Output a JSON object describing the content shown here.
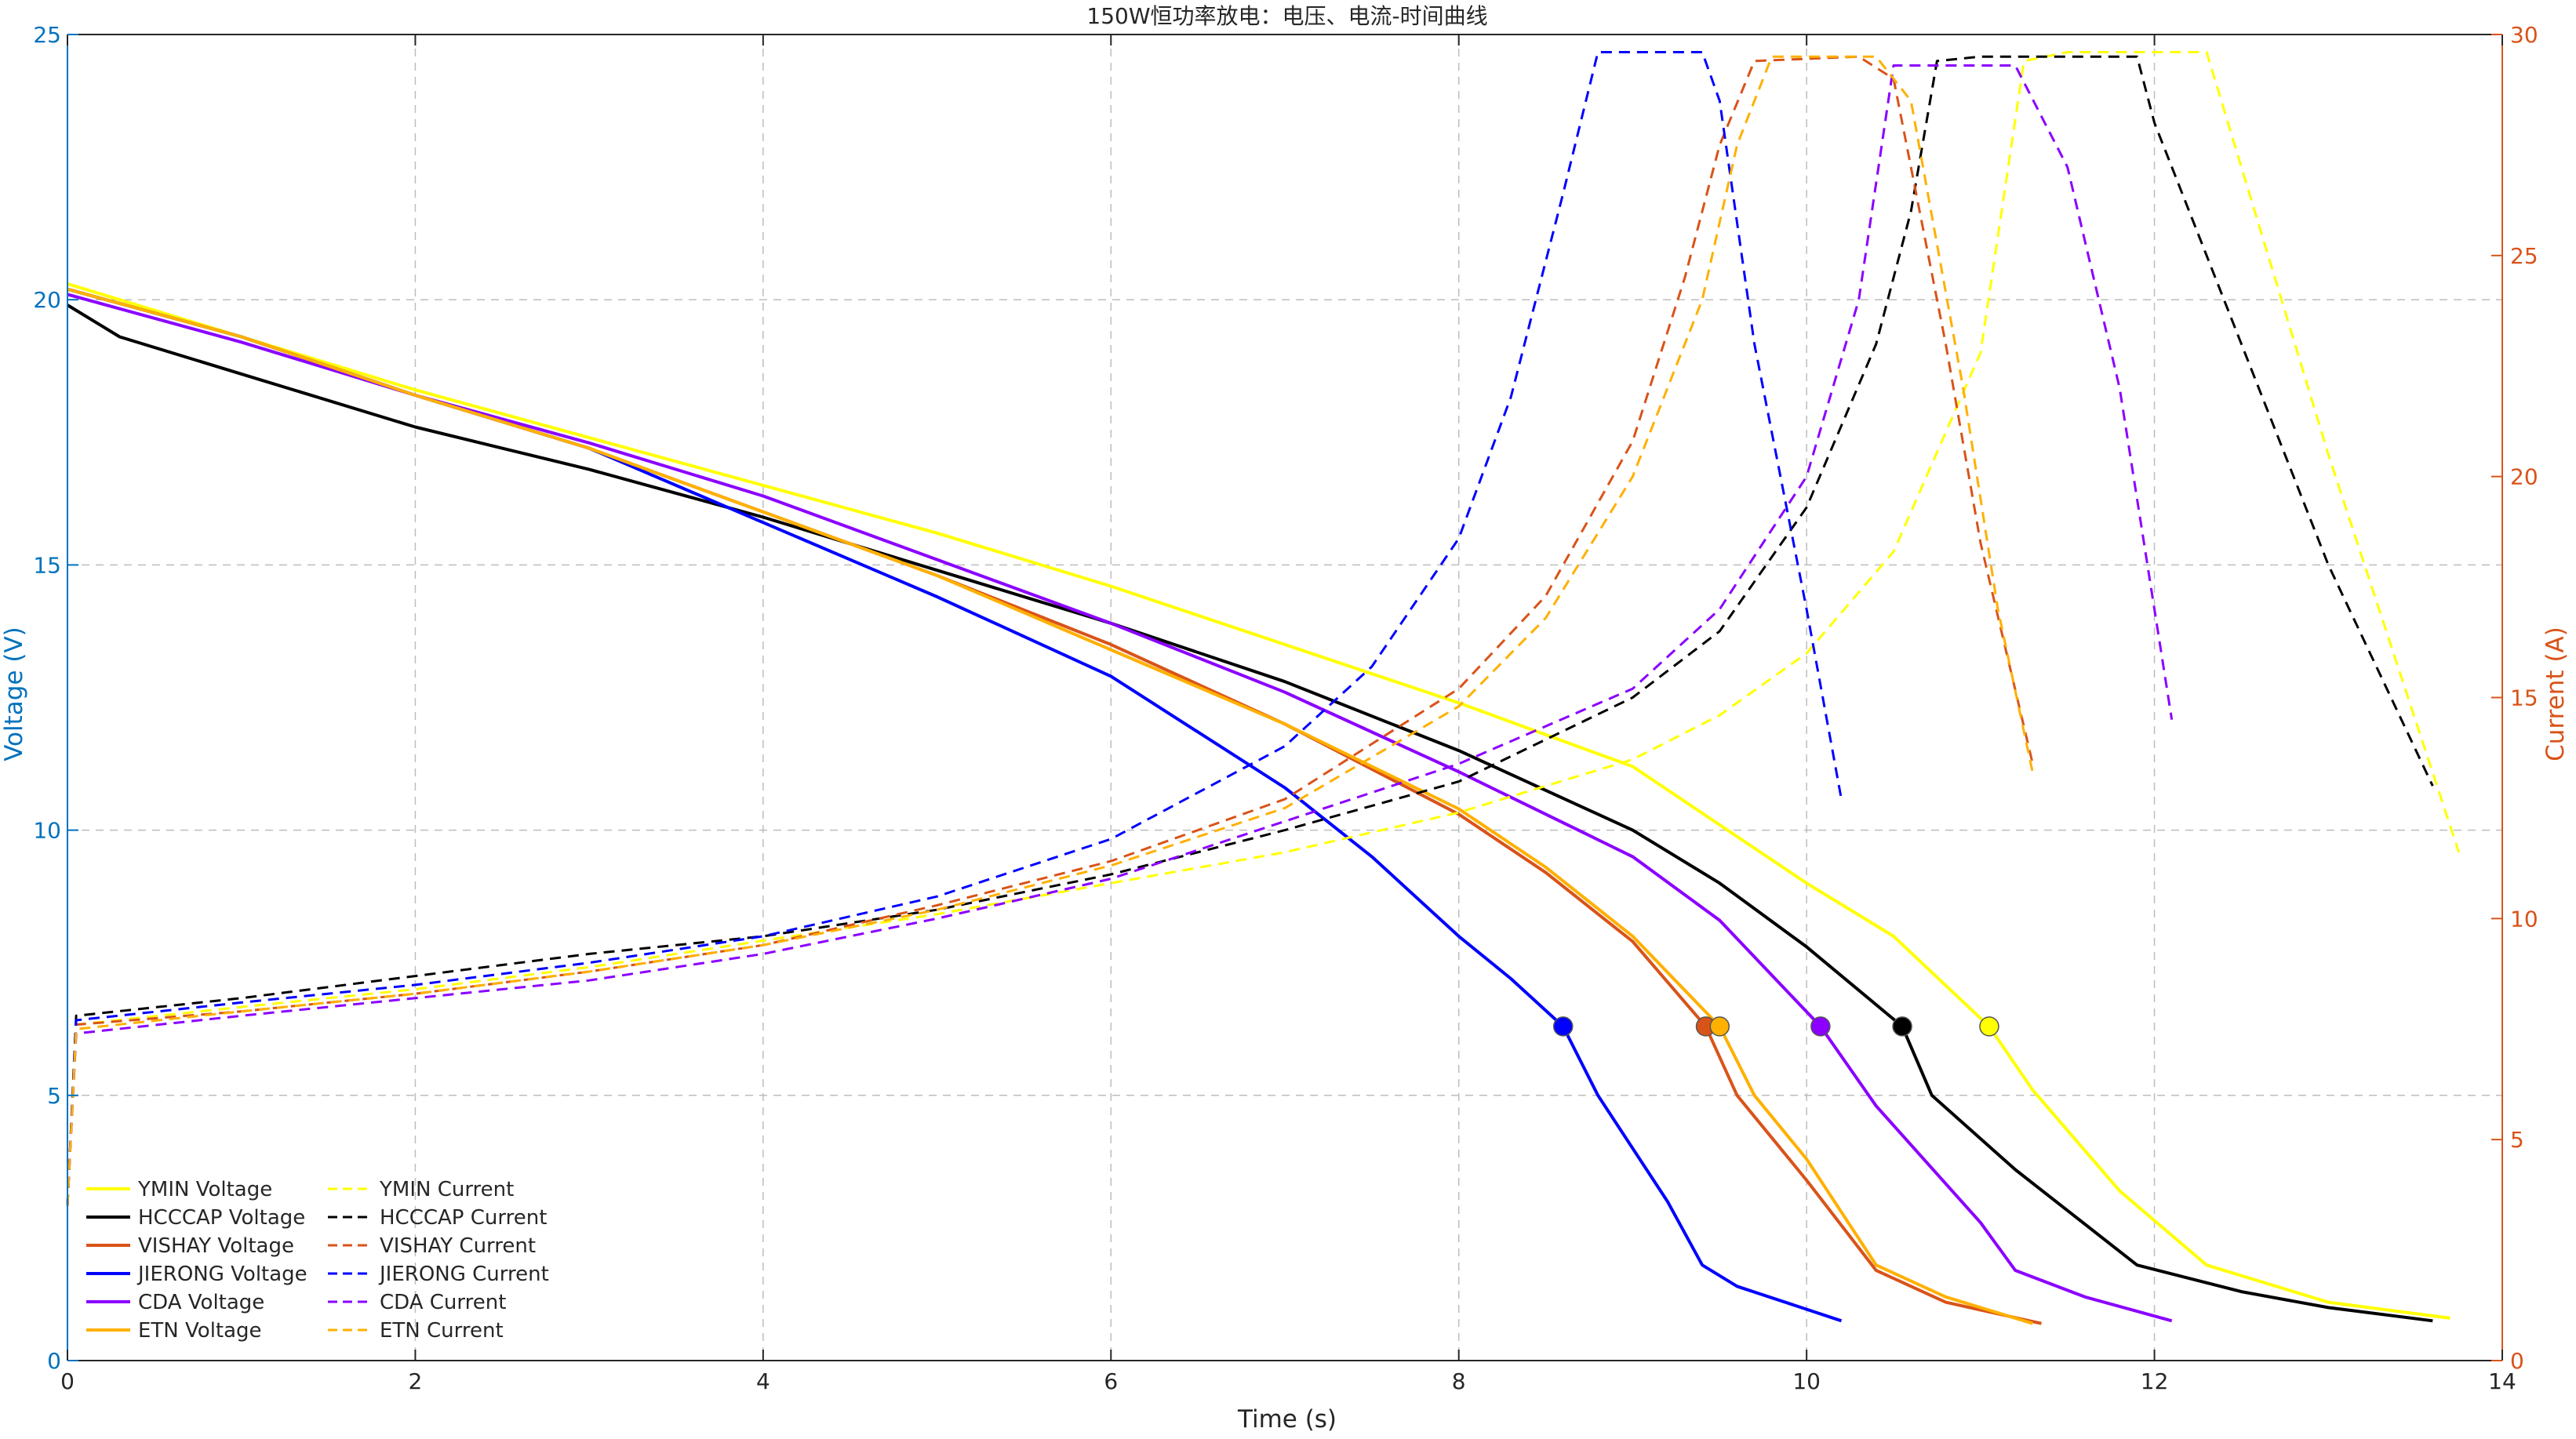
{
  "chart_data": {
    "type": "line",
    "title": "150W恒功率放电：电压、电流-时间曲线",
    "xlabel": "Time (s)",
    "ylabel_left": "Voltage (V)",
    "ylabel_right": "Current (A)",
    "xlim": [
      0,
      14
    ],
    "ylim_left": [
      0,
      25
    ],
    "ylim_right": [
      0,
      30
    ],
    "xticks": [
      "0",
      "2",
      "4",
      "6",
      "8",
      "10",
      "12",
      "14"
    ],
    "yticks_left": [
      "0",
      "5",
      "10",
      "15",
      "20",
      "25"
    ],
    "yticks_right": [
      "0",
      "5",
      "10",
      "15",
      "20",
      "25",
      "30"
    ],
    "grid": true,
    "legend_position": "bottom-left",
    "colors": {
      "left_axis": "#0072BD",
      "right_axis": "#D95319",
      "grid": "#bdbdbd"
    },
    "series": [
      {
        "name": "YMIN Voltage",
        "axis": "left",
        "style": "solid",
        "color": "#FFFF00",
        "x": [
          0,
          1,
          2,
          3,
          4,
          5,
          6,
          7,
          8,
          9,
          10,
          10.5,
          11.05,
          11.3,
          11.8,
          12.3,
          13,
          13.7
        ],
        "y": [
          20.3,
          19.3,
          18.3,
          17.4,
          16.5,
          15.6,
          14.6,
          13.5,
          12.4,
          11.2,
          9.0,
          8.0,
          6.3,
          5.1,
          3.2,
          1.8,
          1.1,
          0.8
        ],
        "marker": {
          "x": 11.05,
          "y": 6.3
        }
      },
      {
        "name": "HCCCAP Voltage",
        "axis": "left",
        "style": "solid",
        "color": "#000000",
        "x": [
          0,
          0.3,
          1,
          2,
          3,
          4,
          5,
          6,
          7,
          8,
          9,
          9.5,
          10,
          10.55,
          10.72,
          11.2,
          11.9,
          12.5,
          13,
          13.6
        ],
        "y": [
          19.9,
          19.3,
          18.6,
          17.6,
          16.8,
          15.9,
          14.9,
          13.9,
          12.8,
          11.5,
          10.0,
          9.0,
          7.8,
          6.3,
          5.0,
          3.6,
          1.8,
          1.3,
          1.0,
          0.75
        ],
        "marker": {
          "x": 10.55,
          "y": 6.3
        }
      },
      {
        "name": "VISHAY Voltage",
        "axis": "left",
        "style": "solid",
        "color": "#D95319",
        "x": [
          0,
          1,
          2,
          3,
          4,
          5,
          6,
          7,
          8,
          8.5,
          9,
          9.42,
          9.6,
          10,
          10.4,
          10.8,
          11.35
        ],
        "y": [
          20.2,
          19.3,
          18.2,
          17.2,
          16.0,
          14.8,
          13.5,
          12.0,
          10.3,
          9.2,
          7.9,
          6.3,
          5.0,
          3.4,
          1.7,
          1.1,
          0.7
        ],
        "marker": {
          "x": 9.42,
          "y": 6.3
        }
      },
      {
        "name": "JIERONG Voltage",
        "axis": "left",
        "style": "solid",
        "color": "#0000FF",
        "x": [
          0,
          1,
          2,
          3,
          4,
          5,
          6,
          7,
          7.5,
          8,
          8.3,
          8.6,
          8.8,
          9.2,
          9.4,
          9.6,
          10.2
        ],
        "y": [
          20.2,
          19.3,
          18.2,
          17.2,
          15.8,
          14.4,
          12.9,
          10.8,
          9.5,
          8.0,
          7.2,
          6.3,
          5.0,
          3.0,
          1.8,
          1.4,
          0.75
        ],
        "marker": {
          "x": 8.6,
          "y": 6.3
        }
      },
      {
        "name": "CDA Voltage",
        "axis": "left",
        "style": "solid",
        "color": "#8B00FF",
        "x": [
          0,
          1,
          2,
          3,
          4,
          5,
          6,
          7,
          8,
          9,
          9.5,
          10.08,
          10.4,
          11,
          11.2,
          11.6,
          12.1
        ],
        "y": [
          20.1,
          19.2,
          18.2,
          17.3,
          16.3,
          15.1,
          13.9,
          12.6,
          11.1,
          9.5,
          8.3,
          6.3,
          4.8,
          2.6,
          1.7,
          1.2,
          0.75
        ],
        "marker": {
          "x": 10.08,
          "y": 6.3
        }
      },
      {
        "name": "ETN Voltage",
        "axis": "left",
        "style": "solid",
        "color": "#FFB000",
        "x": [
          0,
          1,
          2,
          3,
          4,
          5,
          6,
          7,
          8,
          8.5,
          9,
          9.5,
          9.7,
          10,
          10.4,
          10.8,
          11.3
        ],
        "y": [
          20.2,
          19.3,
          18.2,
          17.2,
          16.0,
          14.8,
          13.4,
          12.0,
          10.4,
          9.3,
          8.0,
          6.3,
          5.0,
          3.8,
          1.8,
          1.2,
          0.7
        ],
        "marker": {
          "x": 9.5,
          "y": 6.3
        }
      },
      {
        "name": "YMIN Current",
        "axis": "right",
        "style": "dashed",
        "color": "#FFFF00",
        "x": [
          0,
          0.05,
          1,
          2,
          3,
          4,
          5,
          6,
          7,
          8,
          9,
          9.5,
          10,
          10.5,
          11,
          11.25,
          11.5,
          12.3,
          12.5,
          13,
          13.5,
          13.75
        ],
        "y": [
          3.5,
          7.6,
          8.0,
          8.4,
          8.9,
          9.5,
          10.1,
          10.8,
          11.5,
          12.4,
          13.6,
          14.6,
          16.0,
          18.3,
          22.8,
          29.4,
          29.6,
          29.6,
          27.0,
          20.5,
          14.5,
          11.5
        ],
        "marker": null
      },
      {
        "name": "HCCCAP Current",
        "axis": "right",
        "style": "dashed",
        "color": "#000000",
        "x": [
          0,
          0.05,
          1,
          2,
          3,
          4,
          5,
          6,
          7,
          8,
          9,
          9.5,
          10,
          10.4,
          10.6,
          10.75,
          11,
          11.9,
          12,
          12.5,
          13,
          13.6
        ],
        "y": [
          3.5,
          7.8,
          8.2,
          8.7,
          9.2,
          9.6,
          10.2,
          11.0,
          12.0,
          13.1,
          15.0,
          16.5,
          19.3,
          23.0,
          26.0,
          29.4,
          29.5,
          29.5,
          28.0,
          23.0,
          18.0,
          13.0
        ],
        "marker": null
      },
      {
        "name": "VISHAY Current",
        "axis": "right",
        "style": "dashed",
        "color": "#D95319",
        "x": [
          0,
          0.05,
          1,
          2,
          3,
          4,
          5,
          6,
          7,
          8,
          8.5,
          9,
          9.3,
          9.5,
          9.7,
          10.3,
          10.5,
          10.8,
          11,
          11.3
        ],
        "y": [
          3.5,
          7.6,
          7.9,
          8.3,
          8.8,
          9.4,
          10.3,
          11.3,
          12.7,
          15.2,
          17.3,
          20.8,
          24.5,
          27.5,
          29.4,
          29.5,
          29.0,
          23.0,
          18.5,
          13.5
        ],
        "marker": null
      },
      {
        "name": "JIERONG Current",
        "axis": "right",
        "style": "dashed",
        "color": "#0000FF",
        "x": [
          0,
          0.05,
          1,
          2,
          3,
          4,
          5,
          6,
          7,
          7.5,
          8,
          8.3,
          8.6,
          8.8,
          9.4,
          9.5,
          9.7,
          10,
          10.2
        ],
        "y": [
          3.5,
          7.7,
          8.1,
          8.5,
          9.0,
          9.6,
          10.5,
          11.8,
          13.9,
          15.7,
          18.6,
          21.8,
          26.4,
          29.6,
          29.6,
          28.5,
          23.0,
          17.0,
          12.7
        ],
        "marker": null
      },
      {
        "name": "CDA Current",
        "axis": "right",
        "style": "dashed",
        "color": "#8B00FF",
        "x": [
          0,
          0.05,
          1,
          2,
          3,
          4,
          5,
          6,
          7,
          8,
          9,
          9.5,
          10,
          10.3,
          10.5,
          11.2,
          11.5,
          11.8,
          12.1
        ],
        "y": [
          3.5,
          7.4,
          7.8,
          8.2,
          8.6,
          9.2,
          10.0,
          10.9,
          12.2,
          13.5,
          15.2,
          17.0,
          20.0,
          24.0,
          29.3,
          29.3,
          27.0,
          22.0,
          14.5
        ],
        "marker": null
      },
      {
        "name": "ETN Current",
        "axis": "right",
        "style": "dashed",
        "color": "#FFB000",
        "x": [
          0,
          0.05,
          1,
          2,
          3,
          4,
          5,
          6,
          7,
          8,
          8.5,
          9,
          9.4,
          9.6,
          9.8,
          10.4,
          10.6,
          10.9,
          11.1,
          11.3
        ],
        "y": [
          3.5,
          7.5,
          7.9,
          8.3,
          8.8,
          9.4,
          10.2,
          11.2,
          12.5,
          14.8,
          16.8,
          20.0,
          24.0,
          27.5,
          29.5,
          29.5,
          28.5,
          22.0,
          17.0,
          13.3
        ],
        "marker": null
      }
    ]
  }
}
